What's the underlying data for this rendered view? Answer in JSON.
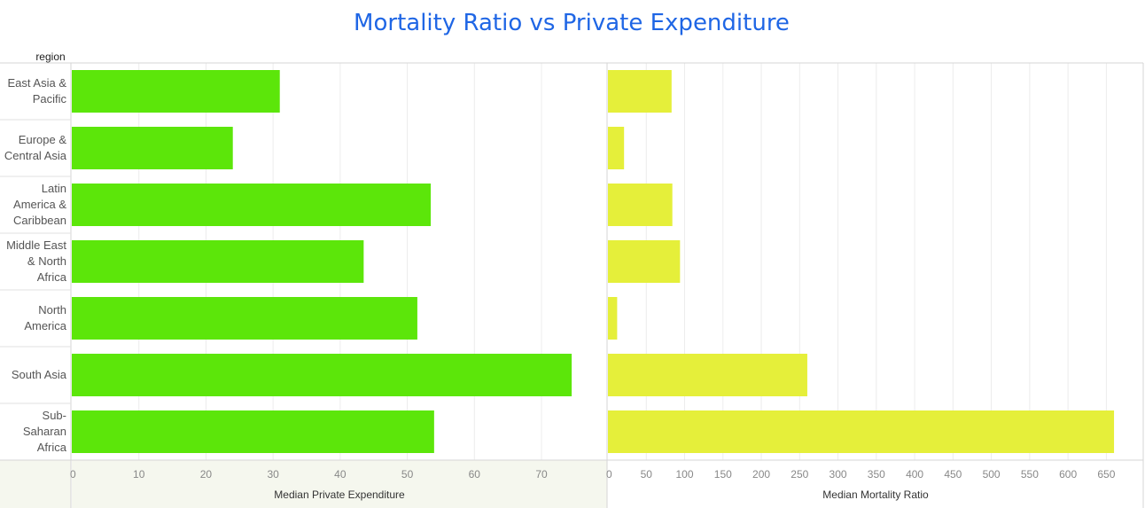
{
  "title": "Mortality Ratio vs Private Expenditure",
  "row_header": "region",
  "colors": {
    "title": "#1f66e5",
    "bar_left": "#5ce60a",
    "bar_right": "#e5ef3a",
    "highlight_panel": "#f5f7ee"
  },
  "chart_data": [
    {
      "type": "bar",
      "orientation": "horizontal",
      "categories": [
        [
          "East Asia &",
          "Pacific"
        ],
        [
          "Europe &",
          "Central Asia"
        ],
        [
          "Latin",
          "America &",
          "Caribbean"
        ],
        [
          "Middle East",
          "& North",
          "Africa"
        ],
        [
          "North",
          "America"
        ],
        [
          "South Asia"
        ],
        [
          "Sub-",
          "Saharan",
          "Africa"
        ]
      ],
      "series": [
        {
          "values": [
            31,
            24,
            53.5,
            43.5,
            51.5,
            74.5,
            54
          ]
        }
      ],
      "xlabel": "Median Private Expenditure",
      "ticks": [
        0,
        10,
        20,
        30,
        40,
        50,
        60,
        70
      ],
      "xlim": [
        0,
        77
      ],
      "grid": true
    },
    {
      "type": "bar",
      "orientation": "horizontal",
      "categories": [
        [
          "East Asia &",
          "Pacific"
        ],
        [
          "Europe &",
          "Central Asia"
        ],
        [
          "Latin",
          "America &",
          "Caribbean"
        ],
        [
          "Middle East",
          "& North",
          "Africa"
        ],
        [
          "North",
          "America"
        ],
        [
          "South Asia"
        ],
        [
          "Sub-",
          "Saharan",
          "Africa"
        ]
      ],
      "series": [
        {
          "values": [
            83,
            21,
            84,
            94,
            12,
            260,
            660
          ]
        }
      ],
      "xlabel": "Median Mortality Ratio",
      "ticks": [
        0,
        50,
        100,
        150,
        200,
        250,
        300,
        350,
        400,
        450,
        500,
        550,
        600,
        650
      ],
      "xlim": [
        0,
        690
      ],
      "grid": true
    }
  ]
}
